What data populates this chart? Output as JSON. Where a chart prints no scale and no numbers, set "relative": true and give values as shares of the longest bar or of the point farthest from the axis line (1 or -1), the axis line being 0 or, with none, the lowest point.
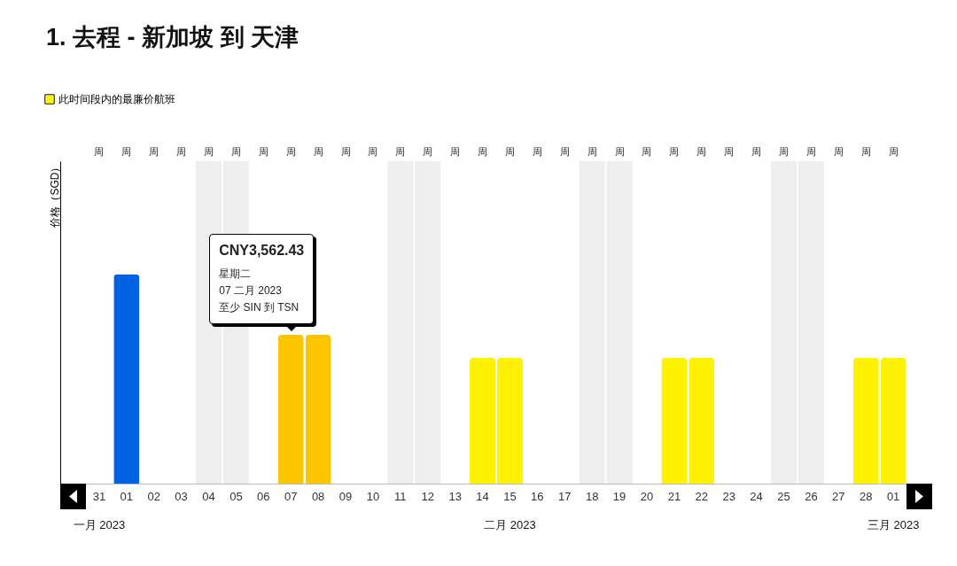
{
  "chart_data": {
    "type": "bar",
    "title": "1. 去程 - 新加坡 到 天津",
    "ylabel": "价格（SGD）",
    "relative": true,
    "legend": "top left",
    "categories": [
      "31",
      "01",
      "02",
      "03",
      "04",
      "05",
      "06",
      "07",
      "08",
      "09",
      "10",
      "11",
      "12",
      "13",
      "14",
      "15",
      "16",
      "17",
      "18",
      "19",
      "20",
      "21",
      "22",
      "23",
      "24",
      "25",
      "26",
      "27",
      "28",
      "01"
    ],
    "series": [
      {
        "name": "此时间段内的最廉价航班",
        "color": "#fff200",
        "values": [
          null,
          1,
          null,
          null,
          null,
          null,
          null,
          0.71,
          0.71,
          null,
          null,
          null,
          null,
          null,
          0.6,
          0.6,
          null,
          null,
          null,
          null,
          null,
          0.6,
          0.6,
          null,
          null,
          null,
          null,
          null,
          0.6,
          0.6
        ],
        "colors": [
          "#fff200",
          "#0062e3",
          "#fff200",
          "#fff200",
          "#fff200",
          "#fff200",
          "#fff200",
          "#fcc600",
          "#fcc600",
          "#fff200",
          "#fff200",
          "#fff200",
          "#fff200",
          "#fff200",
          "#fff200",
          "#fff200",
          "#fff200",
          "#fff200",
          "#fff200",
          "#fff200",
          "#fff200",
          "#fff200",
          "#fff200",
          "#fff200",
          "#fff200",
          "#fff200",
          "#fff200",
          "#fff200",
          "#fff200",
          "#fff200"
        ]
      }
    ],
    "bands": [
      {
        "axis": "x",
        "from": "04",
        "to": "05",
        "color": "#ececec"
      },
      {
        "axis": "x",
        "from": "11",
        "to": "12",
        "color": "#ececec"
      },
      {
        "axis": "x",
        "from": "18",
        "to": "19",
        "color": "#ececec"
      },
      {
        "axis": "x",
        "from": "25",
        "to": "26",
        "color": "#ececec"
      }
    ],
    "annotations": [
      {
        "text": "CNY3,562.43\n星期二\n07 二月 2023\n至少 SIN 到 TSN",
        "x": "07",
        "y": 0.71
      },
      "一月 2023",
      "二月 2023",
      "三月 2023",
      "周",
      "周",
      "周",
      "周",
      "周",
      "周",
      "周",
      "周",
      "周",
      "周",
      "周",
      "周",
      "周",
      "周",
      "周",
      "周",
      "周",
      "周",
      "周",
      "周",
      "周",
      "周",
      "周",
      "周",
      "周",
      "周",
      "周",
      "周",
      "周",
      "周"
    ]
  }
}
